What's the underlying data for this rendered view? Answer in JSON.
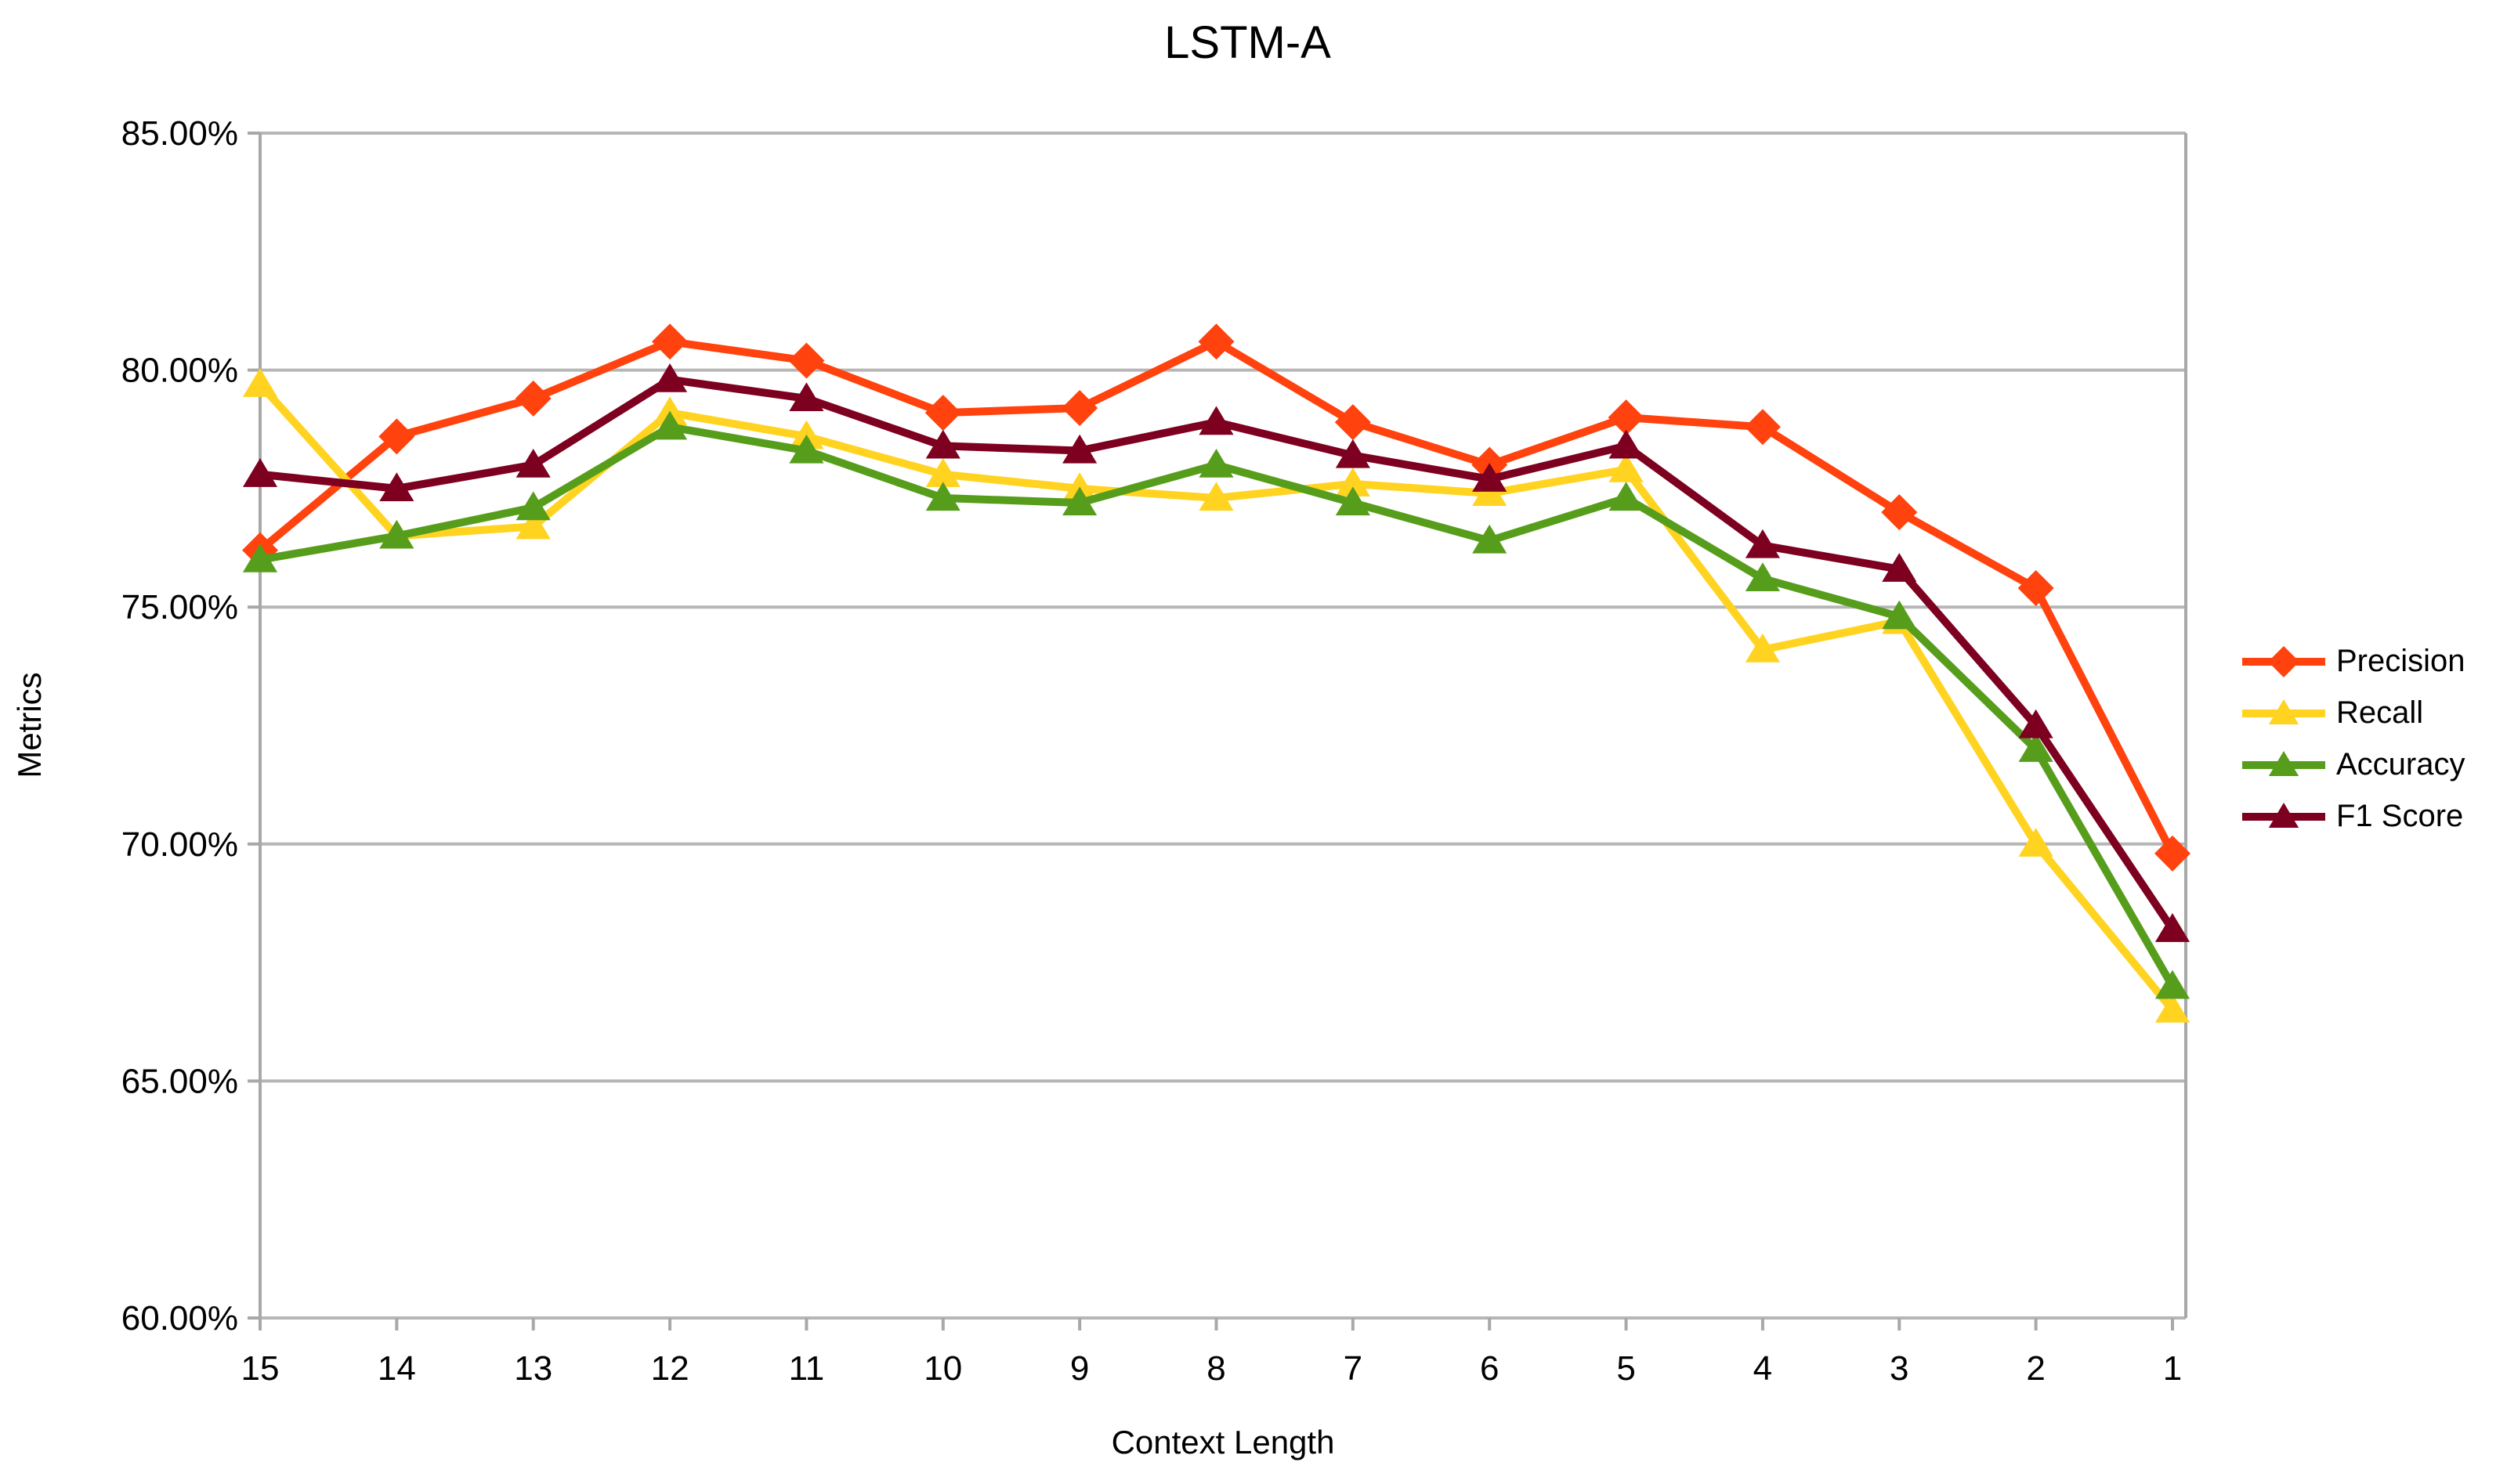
{
  "chart_data": {
    "type": "line",
    "title": "LSTM-A",
    "xlabel": "Context Length",
    "ylabel": "Metrics",
    "categories": [
      "15",
      "14",
      "13",
      "12",
      "11",
      "10",
      "9",
      "8",
      "7",
      "6",
      "5",
      "4",
      "3",
      "2",
      "1"
    ],
    "y_axis": {
      "min": 60,
      "max": 85,
      "step": 5,
      "tick_decimals": 2,
      "tick_suffix": "%"
    },
    "grid": "horizontal",
    "legend_position": "right",
    "colors": {
      "grid": "#b6b6b6",
      "frame": "#a8a8a8",
      "text": "#000000"
    },
    "series": [
      {
        "name": "Precision",
        "color": "#FF420E",
        "marker": "diamond",
        "values": [
          76.2,
          78.6,
          79.4,
          80.6,
          80.2,
          79.1,
          79.2,
          80.6,
          78.9,
          78.0,
          79.0,
          78.8,
          77.0,
          75.4,
          69.8
        ]
      },
      {
        "name": "Recall",
        "color": "#FFD320",
        "marker": "triangle",
        "values": [
          79.7,
          76.5,
          76.7,
          79.1,
          78.6,
          77.8,
          77.5,
          77.3,
          77.6,
          77.4,
          77.9,
          74.1,
          74.7,
          70.0,
          66.5
        ]
      },
      {
        "name": "Accuracy",
        "color": "#579D1C",
        "marker": "triangle",
        "values": [
          76.0,
          76.5,
          77.1,
          78.8,
          78.3,
          77.3,
          77.2,
          78.0,
          77.2,
          76.4,
          77.3,
          75.6,
          74.8,
          72.0,
          67.0
        ]
      },
      {
        "name": "F1 Score",
        "color": "#7E0021",
        "marker": "triangle",
        "values": [
          77.8,
          77.5,
          78.0,
          79.8,
          79.4,
          78.4,
          78.3,
          78.9,
          78.2,
          77.7,
          78.4,
          76.3,
          75.8,
          72.5,
          68.2
        ]
      }
    ]
  }
}
